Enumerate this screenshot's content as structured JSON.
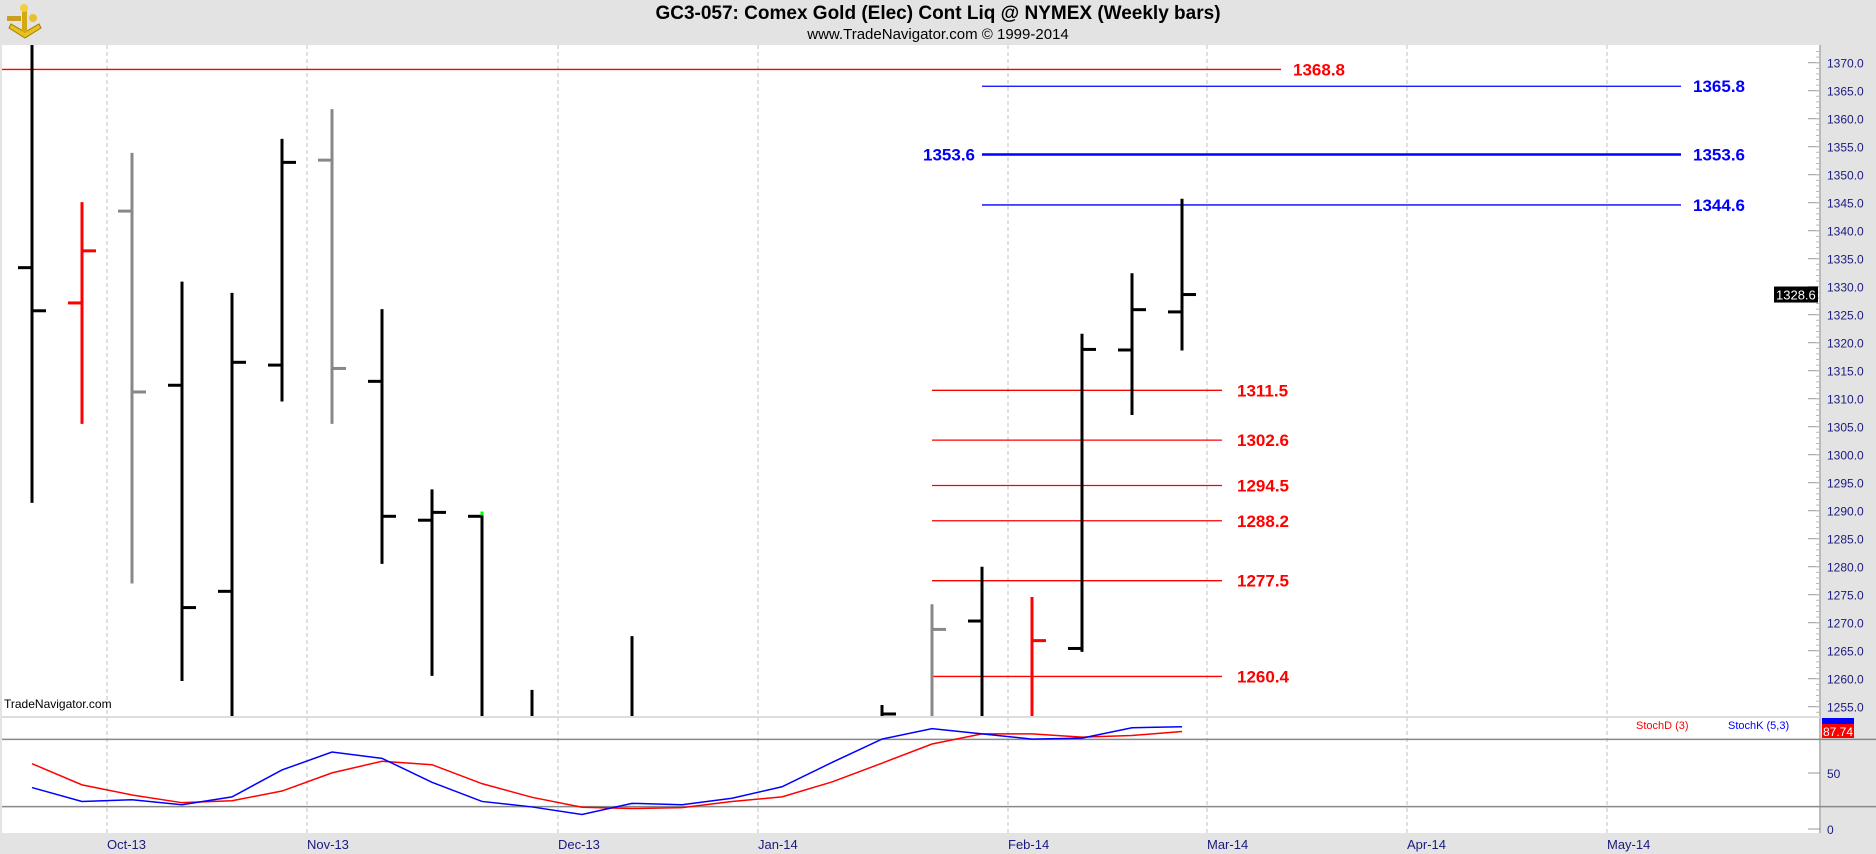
{
  "header": {
    "title": "GC3-057:  Comex Gold (Elec) Cont Liq @ NYMEX  (Weekly bars)",
    "subtitle": "www.TradeNavigator.com © 1999-2014",
    "logo": "sextant-logo"
  },
  "watermark": "TradeNavigator.com",
  "colors": {
    "up": "#000000",
    "down_red": "#ff0000",
    "inside_gray": "#888888",
    "stoch_d": "#ff0000",
    "stoch_k": "#0000ff",
    "fib_red": "#ff0000",
    "fib_blue": "#0000ff",
    "axis_text": "#1a1a80"
  },
  "chart_data": [
    {
      "type": "ohlc",
      "title": "GC3-057:  Comex Gold (Elec) Cont Liq @ NYMEX  (Weekly bars)",
      "ylim": [
        1253,
        1373
      ],
      "y_ticks": [
        "1255.0",
        "1260.0",
        "1265.0",
        "1270.0",
        "1275.0",
        "1280.0",
        "1285.0",
        "1290.0",
        "1295.0",
        "1300.0",
        "1305.0",
        "1310.0",
        "1315.0",
        "1320.0",
        "1325.0",
        "1330.0",
        "1335.0",
        "1340.0",
        "1345.0",
        "1350.0",
        "1355.0",
        "1360.0",
        "1365.0",
        "1370.0"
      ],
      "x_ticks": [
        "Oct-13",
        "Nov-13",
        "Dec-13",
        "Jan-14",
        "Feb-14",
        "Mar-14",
        "Apr-14",
        "May-14"
      ],
      "grid": "vertical dashed at month starts",
      "last_price_label": "1328.6",
      "bars": [
        {
          "week": 0,
          "o": 1333.4,
          "h": 1373.3,
          "l": 1291.4,
          "c": 1325.7,
          "color": "black"
        },
        {
          "week": 1,
          "o": 1327.1,
          "h": 1345.1,
          "l": 1305.5,
          "c": 1336.4,
          "color": "red"
        },
        {
          "week": 2,
          "o": 1343.5,
          "h": 1353.9,
          "l": 1277.0,
          "c": 1311.2,
          "color": "gray"
        },
        {
          "week": 3,
          "o": 1312.4,
          "h": 1330.9,
          "l": 1259.6,
          "c": 1272.7,
          "color": "black"
        },
        {
          "week": 4,
          "o": 1275.6,
          "h": 1328.9,
          "l": null,
          "c": 1316.5,
          "color": "black"
        },
        {
          "week": 5,
          "o": 1316.0,
          "h": 1356.4,
          "l": 1309.5,
          "c": 1352.2,
          "color": "black"
        },
        {
          "week": 6,
          "o": 1352.6,
          "h": 1361.7,
          "l": 1305.5,
          "c": 1315.4,
          "color": "gray"
        },
        {
          "week": 7,
          "o": 1313.1,
          "h": 1326.0,
          "l": 1280.5,
          "c": 1289.0,
          "color": "black"
        },
        {
          "week": 8,
          "o": 1288.3,
          "h": 1293.8,
          "l": 1260.5,
          "c": 1289.7,
          "color": "black"
        },
        {
          "week": 9,
          "o": 1289.0,
          "h": 1289.5,
          "l": null,
          "c": null,
          "color": "black"
        },
        {
          "week": 10,
          "o": null,
          "h": 1258.0,
          "l": null,
          "c": null,
          "color": "black"
        },
        {
          "week": 12,
          "o": null,
          "h": 1267.6,
          "l": null,
          "c": null,
          "color": "black"
        },
        {
          "week": 17,
          "o": null,
          "h": 1255.3,
          "l": null,
          "c": 1253.7,
          "color": "black"
        },
        {
          "week": 18,
          "o": null,
          "h": 1273.3,
          "l": null,
          "c": 1268.8,
          "color": "gray"
        },
        {
          "week": 19,
          "o": 1270.3,
          "h": 1280.0,
          "l": null,
          "c": null,
          "color": "black"
        },
        {
          "week": 20,
          "o": null,
          "h": 1274.6,
          "l": null,
          "c": 1266.8,
          "color": "red"
        },
        {
          "week": 21,
          "o": 1265.4,
          "h": 1321.6,
          "l": 1264.8,
          "c": 1318.8,
          "color": "black"
        },
        {
          "week": 22,
          "o": 1318.7,
          "h": 1332.4,
          "l": 1307.1,
          "c": 1325.9,
          "color": "black"
        },
        {
          "week": 23,
          "o": 1325.5,
          "h": 1345.7,
          "l": 1318.6,
          "c": 1328.6,
          "color": "black"
        }
      ],
      "levels": [
        {
          "value": 1368.8,
          "label": "1368.8",
          "color": "red",
          "span": "full-left"
        },
        {
          "value": 1365.8,
          "label": "1365.8",
          "color": "blue",
          "span": "projection"
        },
        {
          "value": 1353.6,
          "label": "1353.6",
          "color": "blue",
          "span": "projection",
          "left_label": "1353.6",
          "bold": true
        },
        {
          "value": 1344.6,
          "label": "1344.6",
          "color": "blue",
          "span": "projection"
        },
        {
          "value": 1311.5,
          "label": "1311.5",
          "color": "red",
          "span": "retracement"
        },
        {
          "value": 1302.6,
          "label": "1302.6",
          "color": "red",
          "span": "retracement"
        },
        {
          "value": 1294.5,
          "label": "1294.5",
          "color": "red",
          "span": "retracement"
        },
        {
          "value": 1288.2,
          "label": "1288.2",
          "color": "red",
          "span": "retracement"
        },
        {
          "value": 1277.5,
          "label": "1277.5",
          "color": "red",
          "span": "retracement"
        },
        {
          "value": 1260.4,
          "label": "1260.4",
          "color": "red",
          "span": "retracement"
        }
      ]
    },
    {
      "type": "line",
      "ylim": [
        0,
        100
      ],
      "y_ticks": [
        "50",
        "0"
      ],
      "reference_lines": [
        80,
        20
      ],
      "legend": "top-right",
      "series": [
        {
          "name": "StochD (3)",
          "color": "red",
          "last_label": "87.74",
          "values": [
            [
              0,
              58.3
            ],
            [
              1,
              39.4
            ],
            [
              2,
              30.4
            ],
            [
              3,
              23.5
            ],
            [
              4,
              25.2
            ],
            [
              5,
              33.9
            ],
            [
              6,
              50.1
            ],
            [
              7,
              60.5
            ],
            [
              8,
              57.4
            ],
            [
              9,
              40.5
            ],
            [
              10,
              28.3
            ],
            [
              11,
              19.4
            ],
            [
              12,
              18.3
            ],
            [
              13,
              19.1
            ],
            [
              14,
              24.6
            ],
            [
              15,
              28.7
            ],
            [
              16,
              42.0
            ],
            [
              17,
              58.8
            ],
            [
              18,
              75.9
            ],
            [
              19,
              84.9
            ],
            [
              20,
              84.9
            ],
            [
              21,
              82.0
            ],
            [
              22,
              83.5
            ],
            [
              23,
              87.0
            ]
          ]
        },
        {
          "name": "StochK (5,3)",
          "color": "blue",
          "values": [
            [
              0,
              37.0
            ],
            [
              1,
              24.6
            ],
            [
              2,
              26.1
            ],
            [
              3,
              21.7
            ],
            [
              4,
              28.7
            ],
            [
              5,
              52.7
            ],
            [
              6,
              68.7
            ],
            [
              7,
              63.1
            ],
            [
              8,
              41.7
            ],
            [
              9,
              24.6
            ],
            [
              10,
              19.7
            ],
            [
              11,
              13.0
            ],
            [
              12,
              22.9
            ],
            [
              13,
              21.7
            ],
            [
              14,
              27.5
            ],
            [
              15,
              37.7
            ],
            [
              16,
              59.4
            ],
            [
              17,
              80.3
            ],
            [
              18,
              89.6
            ],
            [
              19,
              84.9
            ],
            [
              20,
              80.3
            ],
            [
              21,
              81.1
            ],
            [
              22,
              90.4
            ],
            [
              23,
              91.3
            ]
          ]
        }
      ]
    }
  ]
}
